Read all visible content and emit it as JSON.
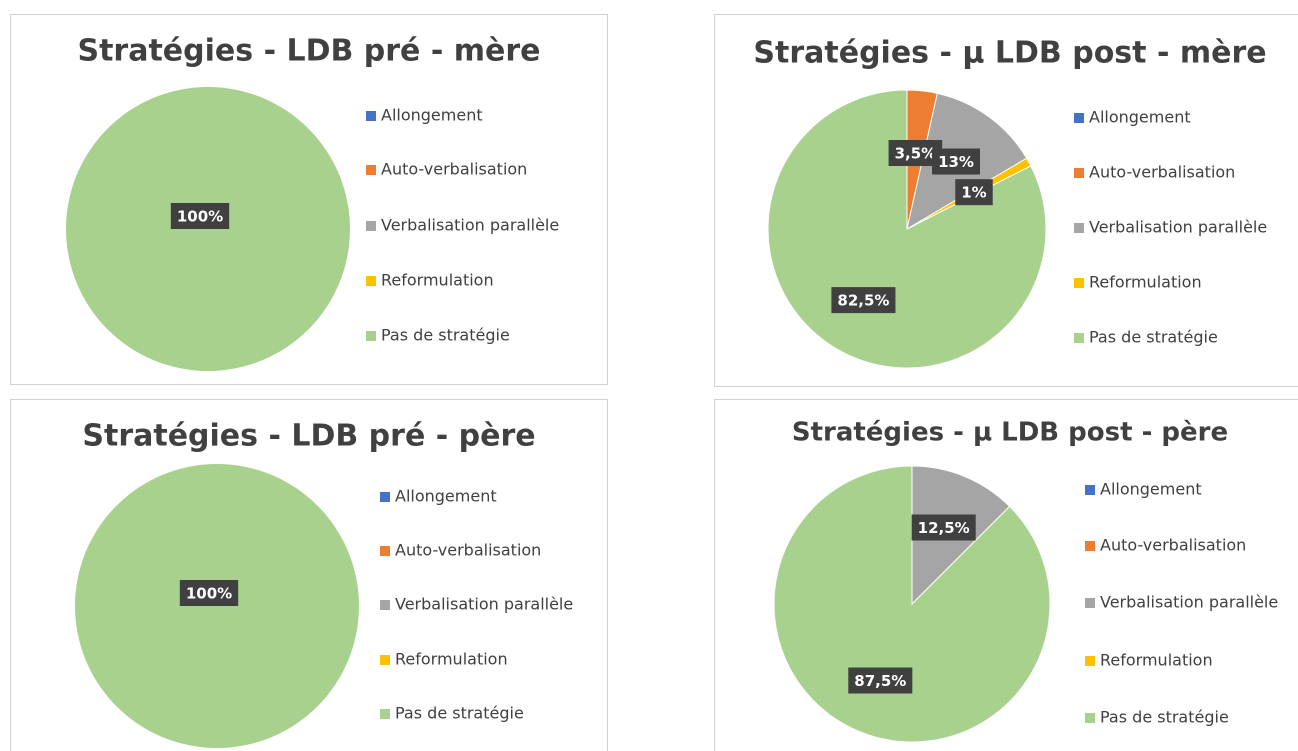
{
  "chart_data": [
    {
      "type": "pie",
      "title": "Stratégies - LDB pré - mère",
      "categories": [
        "Allongement",
        "Auto-verbalisation",
        "Verbalisation parallèle",
        "Reformulation",
        "Pas de stratégie"
      ],
      "values": [
        0,
        0,
        0,
        0,
        100
      ],
      "value_labels": [
        null,
        null,
        null,
        null,
        "100%"
      ],
      "colors": [
        "#4472c4",
        "#ed7d31",
        "#a5a5a5",
        "#ffc000",
        "#a9d18e"
      ]
    },
    {
      "type": "pie",
      "title": "Stratégies - µ LDB post - mère",
      "categories": [
        "Allongement",
        "Auto-verbalisation",
        "Verbalisation parallèle",
        "Reformulation",
        "Pas de stratégie"
      ],
      "values": [
        0,
        3.5,
        13,
        1,
        82.5
      ],
      "value_labels": [
        null,
        "3,5%",
        "13%",
        "1%",
        "82,5%"
      ],
      "colors": [
        "#4472c4",
        "#ed7d31",
        "#a5a5a5",
        "#ffc000",
        "#a9d18e"
      ]
    },
    {
      "type": "pie",
      "title": "Stratégies - LDB pré - père",
      "categories": [
        "Allongement",
        "Auto-verbalisation",
        "Verbalisation parallèle",
        "Reformulation",
        "Pas de stratégie"
      ],
      "values": [
        0,
        0,
        0,
        0,
        100
      ],
      "value_labels": [
        null,
        null,
        null,
        null,
        "100%"
      ],
      "colors": [
        "#4472c4",
        "#ed7d31",
        "#a5a5a5",
        "#ffc000",
        "#a9d18e"
      ]
    },
    {
      "type": "pie",
      "title": "Stratégies - µ LDB post - père",
      "categories": [
        "Allongement",
        "Auto-verbalisation",
        "Verbalisation parallèle",
        "Reformulation",
        "Pas de stratégie"
      ],
      "values": [
        0,
        0,
        12.5,
        0,
        87.5
      ],
      "value_labels": [
        null,
        null,
        "12,5%",
        null,
        "87,5%"
      ],
      "colors": [
        "#4472c4",
        "#ed7d31",
        "#a5a5a5",
        "#ffc000",
        "#a9d18e"
      ]
    }
  ]
}
